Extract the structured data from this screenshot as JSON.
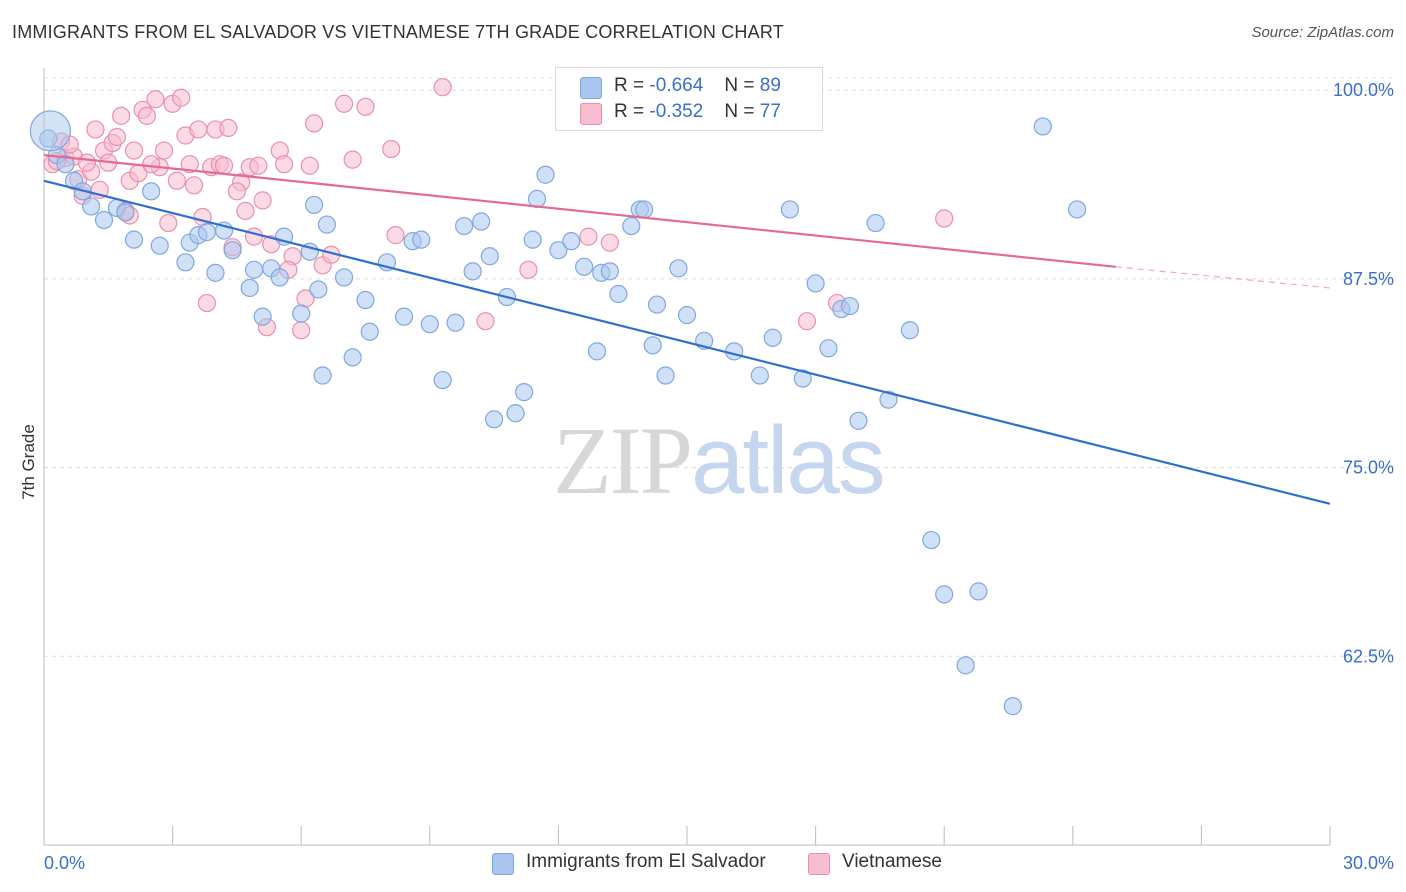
{
  "title": "IMMIGRANTS FROM EL SALVADOR VS VIETNAMESE 7TH GRADE CORRELATION CHART",
  "source": "Source: ZipAtlas.com",
  "watermark": {
    "part1": "ZIP",
    "part2": "atlas"
  },
  "legend": {
    "r_label": "R =",
    "n_label": "N =",
    "rows": [
      {
        "r": "-0.664",
        "n": "89",
        "color": "#aac6ee",
        "border": "#7fa8e0"
      },
      {
        "r": "-0.352",
        "n": "77",
        "color": "#f7bccd",
        "border": "#eb8fab"
      }
    ]
  },
  "chart_data": {
    "type": "scatter",
    "ylabel": "7th Grade",
    "xlim": [
      0,
      30
    ],
    "ylim": [
      50,
      102
    ],
    "x_tick_labels": [
      "0.0%",
      "30.0%"
    ],
    "y_ticks": [
      100,
      87.5,
      75,
      62.5
    ],
    "y_tick_labels": [
      "100.0%",
      "87.5%",
      "75.0%",
      "62.5%"
    ],
    "grid": "horizontal dashed",
    "series": [
      {
        "name": "Immigrants from El Salvador",
        "color": "#aac6ee",
        "stroke": "#7fa8e0",
        "trend_color": "#2f6fd0",
        "trend": {
          "x0": 0,
          "y0": 94.0,
          "x1": 30,
          "y1": 72.6
        },
        "x": [
          0.1,
          0.3,
          0.5,
          0.7,
          0.9,
          1.1,
          1.4,
          1.7,
          1.9,
          2.1,
          2.5,
          2.7,
          3.3,
          3.4,
          3.6,
          3.8,
          4.0,
          4.2,
          4.4,
          4.8,
          4.9,
          5.1,
          5.3,
          5.5,
          5.6,
          6.0,
          6.2,
          6.3,
          6.4,
          6.5,
          6.6,
          7.0,
          7.2,
          7.5,
          7.6,
          8.0,
          8.4,
          8.6,
          8.8,
          9.0,
          9.3,
          9.6,
          9.8,
          10.0,
          10.2,
          10.4,
          10.5,
          10.8,
          11.0,
          11.2,
          11.4,
          11.5,
          11.7,
          12.0,
          12.3,
          12.6,
          12.9,
          13.0,
          13.2,
          13.4,
          13.7,
          13.9,
          14.0,
          14.2,
          14.3,
          14.5,
          14.8,
          15.0,
          15.4,
          16.1,
          16.7,
          17.0,
          17.4,
          17.7,
          18.0,
          18.3,
          18.6,
          18.8,
          19.0,
          19.4,
          19.7,
          20.2,
          20.7,
          21.0,
          21.5,
          21.8,
          22.6,
          23.3,
          24.1
        ],
        "y": [
          96.8,
          95.7,
          95.1,
          94.0,
          93.3,
          92.3,
          91.4,
          92.2,
          91.9,
          90.1,
          93.3,
          89.7,
          88.6,
          89.9,
          90.4,
          90.6,
          87.9,
          90.7,
          89.4,
          86.9,
          88.1,
          85.0,
          88.2,
          87.6,
          90.3,
          85.2,
          89.3,
          92.4,
          86.8,
          81.1,
          91.1,
          87.6,
          82.3,
          86.1,
          84.0,
          88.6,
          85.0,
          90.0,
          90.1,
          84.5,
          80.8,
          84.6,
          91.0,
          88.0,
          91.3,
          89.0,
          78.2,
          86.3,
          78.6,
          80.0,
          90.1,
          92.8,
          94.4,
          89.4,
          90.0,
          88.3,
          82.7,
          87.9,
          88.0,
          86.5,
          91.0,
          92.1,
          92.1,
          83.1,
          85.8,
          81.1,
          88.2,
          85.1,
          83.4,
          82.7,
          81.1,
          83.6,
          92.1,
          80.9,
          87.2,
          82.9,
          85.5,
          85.7,
          78.1,
          91.2,
          79.5,
          84.1,
          70.2,
          66.6,
          61.9,
          66.8,
          59.2,
          97.6,
          92.1
        ]
      },
      {
        "name": "Vietnamese",
        "color": "#f7bccd",
        "stroke": "#eb8fab",
        "trend_color": "#e46a92",
        "trend": {
          "x0": 0,
          "y0": 95.7,
          "x1": 25.0,
          "y1": 88.3
        },
        "trend_ext": {
          "x0": 25.0,
          "y0": 88.3,
          "x1": 30,
          "y1": 86.9
        },
        "x": [
          0.2,
          0.4,
          0.5,
          0.7,
          0.8,
          0.9,
          1.1,
          1.2,
          1.4,
          1.5,
          1.6,
          1.8,
          1.9,
          2.0,
          2.1,
          2.2,
          2.3,
          2.4,
          2.6,
          2.7,
          2.8,
          3.0,
          3.1,
          3.2,
          3.3,
          3.4,
          3.5,
          3.7,
          3.8,
          3.9,
          4.0,
          4.1,
          4.2,
          4.3,
          4.4,
          4.6,
          4.7,
          4.8,
          4.9,
          5.0,
          5.2,
          5.3,
          5.5,
          5.6,
          5.8,
          6.0,
          6.1,
          6.3,
          6.5,
          6.7,
          7.0,
          7.2,
          7.5,
          8.1,
          8.2,
          9.3,
          10.3,
          11.3,
          12.2,
          12.7,
          17.8,
          18.5,
          21.0,
          0.3,
          0.6,
          1.0,
          1.3,
          1.7,
          2.0,
          2.5,
          2.9,
          3.6,
          4.5,
          5.1,
          5.7,
          6.2,
          13.2
        ],
        "y": [
          95.1,
          96.6,
          95.5,
          95.6,
          94.1,
          93.0,
          94.6,
          97.4,
          96.0,
          95.2,
          96.5,
          98.3,
          92.0,
          94.0,
          96.0,
          94.5,
          98.7,
          98.3,
          99.4,
          94.9,
          96.0,
          99.1,
          94.0,
          99.5,
          97.0,
          95.1,
          93.7,
          91.6,
          85.9,
          94.9,
          97.4,
          95.1,
          95.0,
          97.5,
          89.6,
          93.9,
          92.0,
          94.9,
          90.3,
          95.0,
          84.3,
          89.8,
          96.0,
          95.1,
          89.0,
          84.1,
          86.2,
          97.8,
          88.4,
          89.1,
          99.1,
          95.4,
          98.9,
          96.1,
          90.4,
          100.2,
          84.7,
          88.1,
          99.8,
          90.3,
          84.7,
          85.9,
          91.5,
          95.3,
          96.4,
          95.2,
          93.4,
          96.9,
          91.7,
          95.1,
          91.2,
          97.4,
          93.3,
          92.7,
          88.1,
          95.0,
          89.9
        ]
      }
    ]
  }
}
